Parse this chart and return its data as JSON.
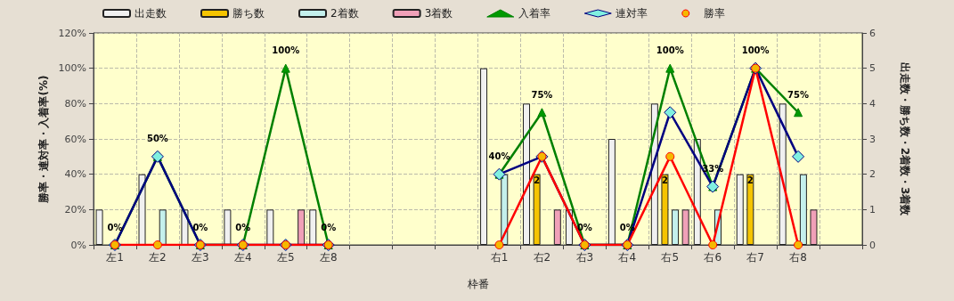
{
  "chart_data": {
    "type": "bar",
    "xlabel": "枠番",
    "ylabel": "勝率・連対率・入着率(%)",
    "y2label": "出走数・勝ち数・2着数・3着数",
    "categories": [
      "左1",
      "左2",
      "左3",
      "左4",
      "左5",
      "左8",
      null,
      null,
      null,
      "右1",
      "右2",
      "右3",
      "右4",
      "右5",
      "右6",
      "右7",
      "右8",
      null
    ],
    "series": [
      {
        "name": "出走数",
        "axis": "y2",
        "color": "#f0f0f0",
        "values": [
          1,
          2,
          1,
          1,
          1,
          1,
          null,
          null,
          null,
          5,
          4,
          1,
          3,
          4,
          3,
          2,
          4,
          null
        ]
      },
      {
        "name": "勝ち数",
        "axis": "y2",
        "color": "#f5c400",
        "values": [
          0,
          0,
          0,
          0,
          0,
          0,
          null,
          null,
          null,
          0,
          2,
          0,
          0,
          2,
          0,
          2,
          0,
          null
        ],
        "value_labels": [
          null,
          null,
          null,
          null,
          null,
          null,
          null,
          null,
          null,
          null,
          "2",
          null,
          null,
          "2",
          null,
          "2",
          null,
          null
        ]
      },
      {
        "name": "2着数",
        "axis": "y2",
        "color": "#c4f0ec",
        "values": [
          0,
          1,
          0,
          0,
          0,
          0,
          null,
          null,
          null,
          2,
          0,
          0,
          0,
          1,
          1,
          0,
          2,
          null
        ]
      },
      {
        "name": "3着数",
        "axis": "y2",
        "color": "#f0a0b8",
        "values": [
          0,
          0,
          0,
          0,
          1,
          0,
          null,
          null,
          null,
          0,
          1,
          0,
          0,
          1,
          0,
          0,
          1,
          null
        ]
      },
      {
        "name": "入着率",
        "type": "line",
        "color": "#008000",
        "marker": "triangle",
        "values": [
          0,
          50,
          0,
          0,
          100,
          0,
          null,
          null,
          null,
          40,
          75,
          0,
          0,
          100,
          33,
          100,
          75,
          null
        ],
        "value_labels": [
          "0%",
          "50%",
          "0%",
          "0%",
          "100%",
          "0%",
          null,
          null,
          null,
          "40%",
          "75%",
          "0%",
          "0%",
          "100%",
          "33%",
          "100%",
          "75%",
          null
        ]
      },
      {
        "name": "連対率",
        "type": "line",
        "color": "#000080",
        "marker": "diamond",
        "values": [
          0,
          50,
          0,
          0,
          0,
          0,
          null,
          null,
          null,
          40,
          50,
          0,
          0,
          75,
          33,
          100,
          50,
          null
        ]
      },
      {
        "name": "勝率",
        "type": "line",
        "color": "#ff0000",
        "marker": "circle",
        "values": [
          0,
          0,
          0,
          0,
          0,
          0,
          null,
          null,
          null,
          0,
          50,
          0,
          0,
          50,
          0,
          100,
          0,
          null
        ]
      }
    ],
    "ylim": [
      0,
      120
    ],
    "yticks": [
      {
        "value": 0,
        "label": "0%"
      },
      {
        "value": 20,
        "label": "20%"
      },
      {
        "value": 40,
        "label": "40%"
      },
      {
        "value": 60,
        "label": "60%"
      },
      {
        "value": 80,
        "label": "80%"
      },
      {
        "value": 100,
        "label": "100%"
      },
      {
        "value": 120,
        "label": "120%"
      }
    ],
    "y2lim": [
      0,
      6
    ],
    "y2ticks": [
      0,
      1,
      2,
      3,
      4,
      5,
      6
    ],
    "grid": true,
    "legend": "top",
    "line_style": "solid"
  }
}
